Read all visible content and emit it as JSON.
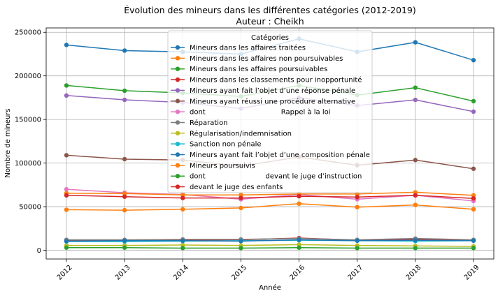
{
  "chart_data": {
    "type": "line",
    "title": "Évolution des mineurs dans les différentes catégories (2012-2019)",
    "subtitle": "Auteur : Cheikh",
    "xlabel": "Année",
    "ylabel": "Nombre de mineurs",
    "x": [
      "2012",
      "2013",
      "2014",
      "2015",
      "2016",
      "2017",
      "2018",
      "2019"
    ],
    "ylim": [
      -10000,
      255000
    ],
    "yticks": [
      0,
      50000,
      100000,
      150000,
      200000,
      250000
    ],
    "ytick_labels": [
      "0",
      "50000",
      "100000",
      "150000",
      "200000",
      "250000"
    ],
    "grid": true,
    "legend": {
      "title": "Catégories",
      "placement": "upper-center"
    },
    "series": [
      {
        "name": "Mineurs dans les affaires traitées",
        "color": "#1f77b4",
        "values": [
          235500,
          229000,
          227500,
          225000,
          242500,
          227500,
          238500,
          218000
        ]
      },
      {
        "name": "Mineurs dans les affaires non poursuivables",
        "color": "#ff7f0e",
        "values": [
          46500,
          46000,
          47000,
          48500,
          53500,
          49500,
          52000,
          47000
        ]
      },
      {
        "name": "Mineurs dans les affaires poursuivables",
        "color": "#2ca02c",
        "values": [
          189000,
          183000,
          180500,
          176500,
          189000,
          178000,
          186500,
          171000
        ]
      },
      {
        "name": "Mineurs dans les classements pour inopportunité",
        "color": "#d62728",
        "values": [
          11500,
          11000,
          11500,
          12000,
          14000,
          11500,
          12500,
          11500
        ]
      },
      {
        "name": "Mineurs ayant fait l’objet d’une réponse pénale",
        "color": "#9467bd",
        "values": [
          177500,
          172500,
          169500,
          162500,
          175000,
          166000,
          172500,
          159000
        ]
      },
      {
        "name": "Mineurs ayant réussi une procédure alternative",
        "color": "#8c564b",
        "values": [
          109000,
          104500,
          103500,
          96500,
          107000,
          97500,
          103500,
          93500
        ]
      },
      {
        "name": "dont                                  Rappel à la loi",
        "color": "#e377c2",
        "values": [
          70000,
          66000,
          64000,
          58500,
          64000,
          58500,
          63000,
          56500
        ]
      },
      {
        "name": "Réparation",
        "color": "#7f7f7f",
        "values": [
          12000,
          12000,
          12500,
          12500,
          13500,
          12000,
          13500,
          12000
        ]
      },
      {
        "name": "Régularisation/indemnisation",
        "color": "#bcbd22",
        "values": [
          5500,
          5500,
          6000,
          5500,
          6500,
          5500,
          5000,
          4500
        ]
      },
      {
        "name": "Sanction non pénale",
        "color": "#17becf",
        "values": [
          10000,
          10000,
          10500,
          11000,
          11500,
          11000,
          10500,
          11000
        ]
      },
      {
        "name": "Mineurs ayant fait l’objet d’une composition pénale",
        "color": "#1f77b4",
        "values": [
          10500,
          11000,
          11000,
          10500,
          12000,
          11000,
          11500,
          11000
        ]
      },
      {
        "name": "Mineurs poursuivis",
        "color": "#ff7f0e",
        "values": [
          65500,
          65000,
          63500,
          63500,
          64500,
          64500,
          66500,
          63000
        ]
      },
      {
        "name": "dont                           devant le juge d’instruction",
        "color": "#2ca02c",
        "values": [
          3000,
          3000,
          2500,
          2500,
          3000,
          2500,
          2500,
          2500
        ]
      },
      {
        "name": "devant le juge des enfants",
        "color": "#d62728",
        "values": [
          63000,
          61500,
          60000,
          60000,
          62000,
          61000,
          63000,
          59500
        ]
      }
    ]
  }
}
